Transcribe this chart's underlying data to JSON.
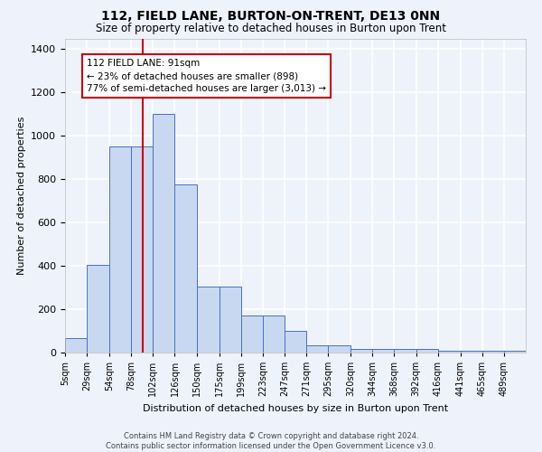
{
  "title": "112, FIELD LANE, BURTON-ON-TRENT, DE13 0NN",
  "subtitle": "Size of property relative to detached houses in Burton upon Trent",
  "xlabel": "Distribution of detached houses by size in Burton upon Trent",
  "ylabel": "Number of detached properties",
  "footer_line1": "Contains HM Land Registry data © Crown copyright and database right 2024.",
  "footer_line2": "Contains public sector information licensed under the Open Government Licence v3.0.",
  "bar_labels": [
    "5sqm",
    "29sqm",
    "54sqm",
    "78sqm",
    "102sqm",
    "126sqm",
    "150sqm",
    "175sqm",
    "199sqm",
    "223sqm",
    "247sqm",
    "271sqm",
    "295sqm",
    "320sqm",
    "344sqm",
    "368sqm",
    "392sqm",
    "416sqm",
    "441sqm",
    "465sqm",
    "489sqm"
  ],
  "bar_values": [
    65,
    405,
    950,
    950,
    1100,
    775,
    305,
    305,
    170,
    170,
    100,
    35,
    35,
    15,
    15,
    15,
    15,
    10,
    10,
    10,
    10
  ],
  "bar_color": "#c8d8f0",
  "bar_edge_color": "#4472c4",
  "vline_x": 91,
  "vline_color": "#cc0000",
  "annotation_text": "112 FIELD LANE: 91sqm\n← 23% of detached houses are smaller (898)\n77% of semi-detached houses are larger (3,013) →",
  "annotation_box_color": "#ffffff",
  "annotation_box_edge": "#cc0000",
  "ylim": [
    0,
    1450
  ],
  "xlim": [
    5,
    513
  ],
  "background_color": "#eef2fb",
  "grid_color": "#ffffff",
  "title_fontsize": 10,
  "subtitle_fontsize": 8.5,
  "ylabel_fontsize": 8,
  "xlabel_fontsize": 8,
  "tick_fontsize": 7,
  "footer_fontsize": 6,
  "annot_fontsize": 7.5
}
